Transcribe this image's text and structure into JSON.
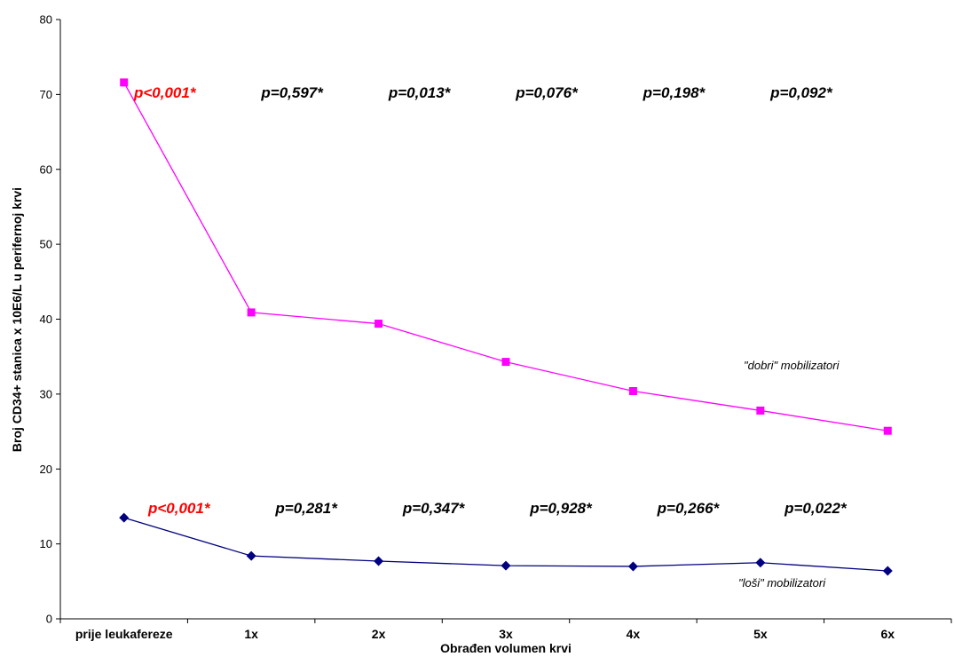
{
  "chart_data": {
    "type": "line",
    "xlabel": "Obrađen volumen krvi",
    "ylabel": "Broj CD34+ stanica x 10E6/L u perifernoj krvi",
    "ylim": [
      0,
      80
    ],
    "yticks": [
      0,
      10,
      20,
      30,
      40,
      50,
      60,
      70,
      80
    ],
    "grid": false,
    "categories": [
      "prije leukafereze",
      "1x",
      "2x",
      "3x",
      "4x",
      "5x",
      "6x"
    ],
    "series": [
      {
        "name": "\"dobri\" mobilizatori",
        "color": "#ff00ff",
        "marker": "square",
        "values": [
          71.6,
          40.9,
          39.4,
          34.3,
          30.4,
          27.8,
          25.1
        ],
        "pvalues": [
          "p<0,001*",
          "p=0,597*",
          "p=0,013*",
          "p=0,076*",
          "p=0,198*",
          "p=0,092*"
        ],
        "pvalue_colors": [
          "#ff0000",
          "#000000",
          "#000000",
          "#000000",
          "#000000",
          "#000000"
        ]
      },
      {
        "name": "\"loši\" mobilizatori",
        "color": "#000080",
        "marker": "diamond",
        "values": [
          13.5,
          8.4,
          7.7,
          7.1,
          7.0,
          7.5,
          6.4
        ],
        "pvalues": [
          "p<0,001*",
          "p=0,281*",
          "p=0,347*",
          "p=0,928*",
          "p=0,266*",
          "p=0,022*"
        ],
        "pvalue_colors": [
          "#ff0000",
          "#000000",
          "#000000",
          "#000000",
          "#000000",
          "#000000"
        ]
      }
    ]
  }
}
